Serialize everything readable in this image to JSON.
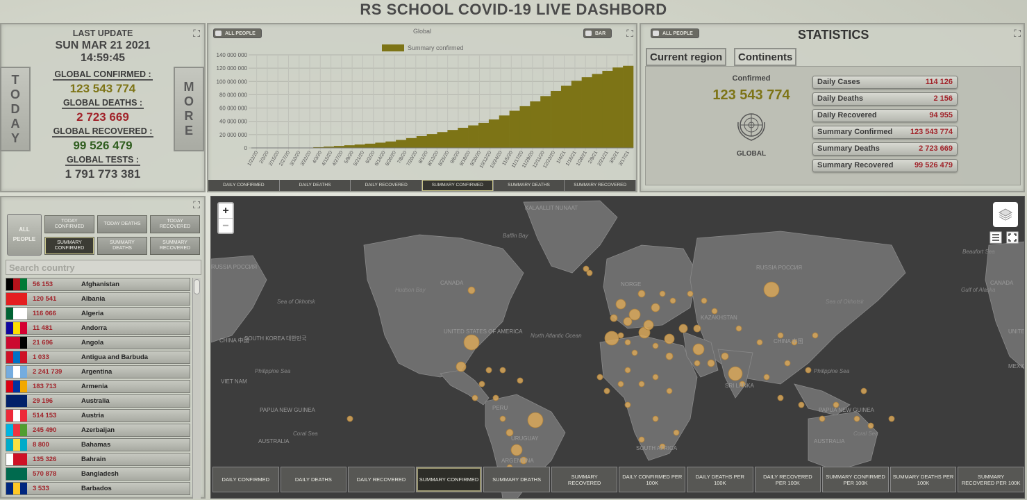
{
  "header": {
    "title": "RS SCHOOL COVID-19 LIVE DASHBORD"
  },
  "today_panel": {
    "today_button": "TODAY",
    "more_button": "MORE",
    "last_update_label": "LAST UPDATE",
    "last_update_value": "SUN MAR 21 2021 14:59:45",
    "confirmed_label": "GLOBAL CONFIRMED :",
    "confirmed_value": "123 543 774",
    "deaths_label": "GLOBAL DEATHS :",
    "deaths_value": "2 723 669",
    "recovered_label": "GLOBAL RECOVERED :",
    "recovered_value": "99 526 479",
    "tests_label": "GLOBAL TESTS :",
    "tests_value": "1 791 773 381",
    "colors": {
      "confirmed": "#7d7416",
      "deaths": "#a1232a",
      "recovered": "#2f5d1f",
      "tests": "#444444"
    }
  },
  "chart_panel": {
    "toggle_people": "ALL PEOPLE",
    "toggle_type": "BAR",
    "tabs": [
      "DAILY CONFIRMED",
      "DAILY DEATHS",
      "DAILY RECOVERED",
      "SUMMARY CONFIRMED",
      "SUMMARY DEATHS",
      "SUMMARY RECOVERED"
    ],
    "active_tab": 3
  },
  "chart_data": {
    "type": "bar",
    "title": "Global",
    "legend": "Summary confirmed",
    "color": "#7d7416",
    "ylim": [
      0,
      140000000
    ],
    "y_ticks": [
      "0",
      "20 000 000",
      "40 000 000",
      "60 000 000",
      "80 000 000",
      "100 000 000",
      "120 000 000",
      "140 000 000"
    ],
    "x_ticks": [
      "1/22/20",
      "2/3/20",
      "2/15/20",
      "2/27/20",
      "3/10/20",
      "3/22/20",
      "4/3/20",
      "4/15/20",
      "4/27/20",
      "5/9/20",
      "5/21/20",
      "6/2/20",
      "6/14/20",
      "6/26/20",
      "7/8/20",
      "7/20/20",
      "8/1/20",
      "8/13/20",
      "8/25/20",
      "9/6/20",
      "9/18/20",
      "9/30/20",
      "10/12/20",
      "10/24/20",
      "11/5/20",
      "11/17/20",
      "11/29/20",
      "12/11/20",
      "12/23/20",
      "1/4/21",
      "1/16/21",
      "1/28/21",
      "2/9/21",
      "2/21/21",
      "3/5/21",
      "3/17/21"
    ],
    "values": [
      560,
      17000,
      71000,
      84000,
      120000,
      340000,
      1100000,
      2000000,
      3000000,
      4000000,
      5100000,
      6400000,
      7900000,
      9700000,
      12000000,
      14800000,
      17800000,
      20800000,
      23800000,
      27000000,
      30300000,
      33900000,
      37700000,
      42800000,
      48800000,
      55900000,
      62800000,
      70000000,
      78000000,
      85700000,
      93500000,
      101000000,
      106400000,
      111200000,
      116000000,
      121000000,
      123543774
    ]
  },
  "stats_panel": {
    "toggle_people": "ALL PEOPLE",
    "title": "STATISTICS",
    "tab_current": "Current region",
    "tab_continents": "Continents",
    "confirmed_label": "Confirmed",
    "confirmed_value": "123 543 774",
    "region_label": "GLOBAL",
    "rows": [
      {
        "label": "Daily Cases",
        "value": "114 126"
      },
      {
        "label": "Daily Deaths",
        "value": "2 156"
      },
      {
        "label": "Daily Recovered",
        "value": "94 955"
      },
      {
        "label": "Summary Confirmed",
        "value": "123 543 774"
      },
      {
        "label": "Summary Deaths",
        "value": "2 723 669"
      },
      {
        "label": "Summary Recovered",
        "value": "99 526 479"
      }
    ]
  },
  "list_panel": {
    "all_people": [
      "ALL",
      "PEOPLE"
    ],
    "filters": [
      [
        "TODAY",
        "CONFIRMED"
      ],
      [
        "TODAY DEATHS"
      ],
      [
        "TODAY",
        "RECOVERED"
      ],
      [
        "SUMMARY",
        "CONFIRMED"
      ],
      [
        "SUMMARY",
        "DEATHS"
      ],
      [
        "SUMMARY",
        "RECOVERED"
      ]
    ],
    "active_filter": 3,
    "search_placeholder": "Search country",
    "countries": [
      {
        "value": "56 153",
        "name": "Afghanistan",
        "flag": [
          "#000000",
          "#b5121b",
          "#007a36"
        ]
      },
      {
        "value": "120 541",
        "name": "Albania",
        "flag": [
          "#e41e20",
          "#e41e20",
          "#e41e20"
        ]
      },
      {
        "value": "116 066",
        "name": "Algeria",
        "flag": [
          "#006233",
          "#ffffff",
          "#ffffff"
        ]
      },
      {
        "value": "11 481",
        "name": "Andorra",
        "flag": [
          "#10069f",
          "#fedd00",
          "#d50032"
        ]
      },
      {
        "value": "21 696",
        "name": "Angola",
        "flag": [
          "#cc092f",
          "#cc092f",
          "#000000"
        ]
      },
      {
        "value": "1 033",
        "name": "Antigua and Barbuda",
        "flag": [
          "#ce1126",
          "#0072c6",
          "#ce1126"
        ]
      },
      {
        "value": "2 241 739",
        "name": "Argentina",
        "flag": [
          "#74acdf",
          "#ffffff",
          "#74acdf"
        ]
      },
      {
        "value": "183 713",
        "name": "Armenia",
        "flag": [
          "#d90012",
          "#0033a0",
          "#f2a800"
        ]
      },
      {
        "value": "29 196",
        "name": "Australia",
        "flag": [
          "#012169",
          "#012169",
          "#012169"
        ]
      },
      {
        "value": "514 153",
        "name": "Austria",
        "flag": [
          "#ed2939",
          "#ffffff",
          "#ed2939"
        ]
      },
      {
        "value": "245 490",
        "name": "Azerbaijan",
        "flag": [
          "#00b5e2",
          "#ef3340",
          "#509e2f"
        ]
      },
      {
        "value": "8 800",
        "name": "Bahamas",
        "flag": [
          "#00abc9",
          "#fae042",
          "#00abc9"
        ]
      },
      {
        "value": "135 326",
        "name": "Bahrain",
        "flag": [
          "#ffffff",
          "#ce1126",
          "#ce1126"
        ]
      },
      {
        "value": "570 878",
        "name": "Bangladesh",
        "flag": [
          "#006a4e",
          "#006a4e",
          "#006a4e"
        ]
      },
      {
        "value": "3 533",
        "name": "Barbados",
        "flag": [
          "#00267f",
          "#ffc726",
          "#00267f"
        ]
      }
    ]
  },
  "map_panel": {
    "zoom_in": "+",
    "zoom_out": "−",
    "labels": {
      "kalaallit": "KALAALLIT NUNAAT",
      "canada": "CANADA",
      "canada_right": "CANADA",
      "usa": "UNITED STATES OF AMERICA",
      "usa_right": "UNITED STATES",
      "mexico": "MEXICO",
      "russia": "RUSSIA РОССИЯ",
      "russia_left": "RUSSIA РОССИЯ",
      "china": "CHINA 中国",
      "china_right": "CHINA 中国",
      "south_korea": "SOUTH KOREA 대한민국",
      "vietnam": "VIET NAM",
      "png": "PAPUA NEW GUINEA",
      "png_right": "PAPUA NEW GUINEA",
      "australia": "AUSTRALIA",
      "australia_right": "AUSTRALIA",
      "sri_lanka": "SRI LANKA",
      "kazakhstan": "KAZAKHSTAN",
      "norge": "NORGE",
      "peru": "PERU",
      "uruguay": "URUGUAY",
      "argentina": "ARGENTINA",
      "south_africa": "SOUTH AFRICA"
    },
    "seas": {
      "baffin": "Baffin Bay",
      "hudson": "Hudson Bay",
      "okhotsk": "Sea of Okhotsk",
      "okhotsk_right": "Sea of Okhotsk",
      "north_atlantic": "North Atlantic Ocean",
      "philippine": "Philippine Sea",
      "philippine_right": "Philippine Sea",
      "coral": "Coral Sea",
      "coral_right": "Coral Sea",
      "beaufort": "Beaufort Sea",
      "alaska": "Gulf of Alaska"
    },
    "tabs": [
      "DAILY CONFIRMED",
      "DAILY DEATHS",
      "DAILY RECOVERED",
      "SUMMARY CONFIRMED",
      "SUMMARY DEATHS",
      "SUMMARY RECOVERED",
      "DAILY CONFIRMED PER 100K",
      "DAILY DEATHS PER 100K",
      "DAILY RECOVERED PER 100K",
      "SUMMARY CONFIRMED PER 100K",
      "SUMMARY DEATHS PER 100K",
      "SUMMARY RECOVERED PER 100K"
    ],
    "active_tab": 3,
    "colors": {
      "land": "#6e6e6e",
      "ocean": "#3d3d3d",
      "circle": "#d9a85a"
    }
  }
}
